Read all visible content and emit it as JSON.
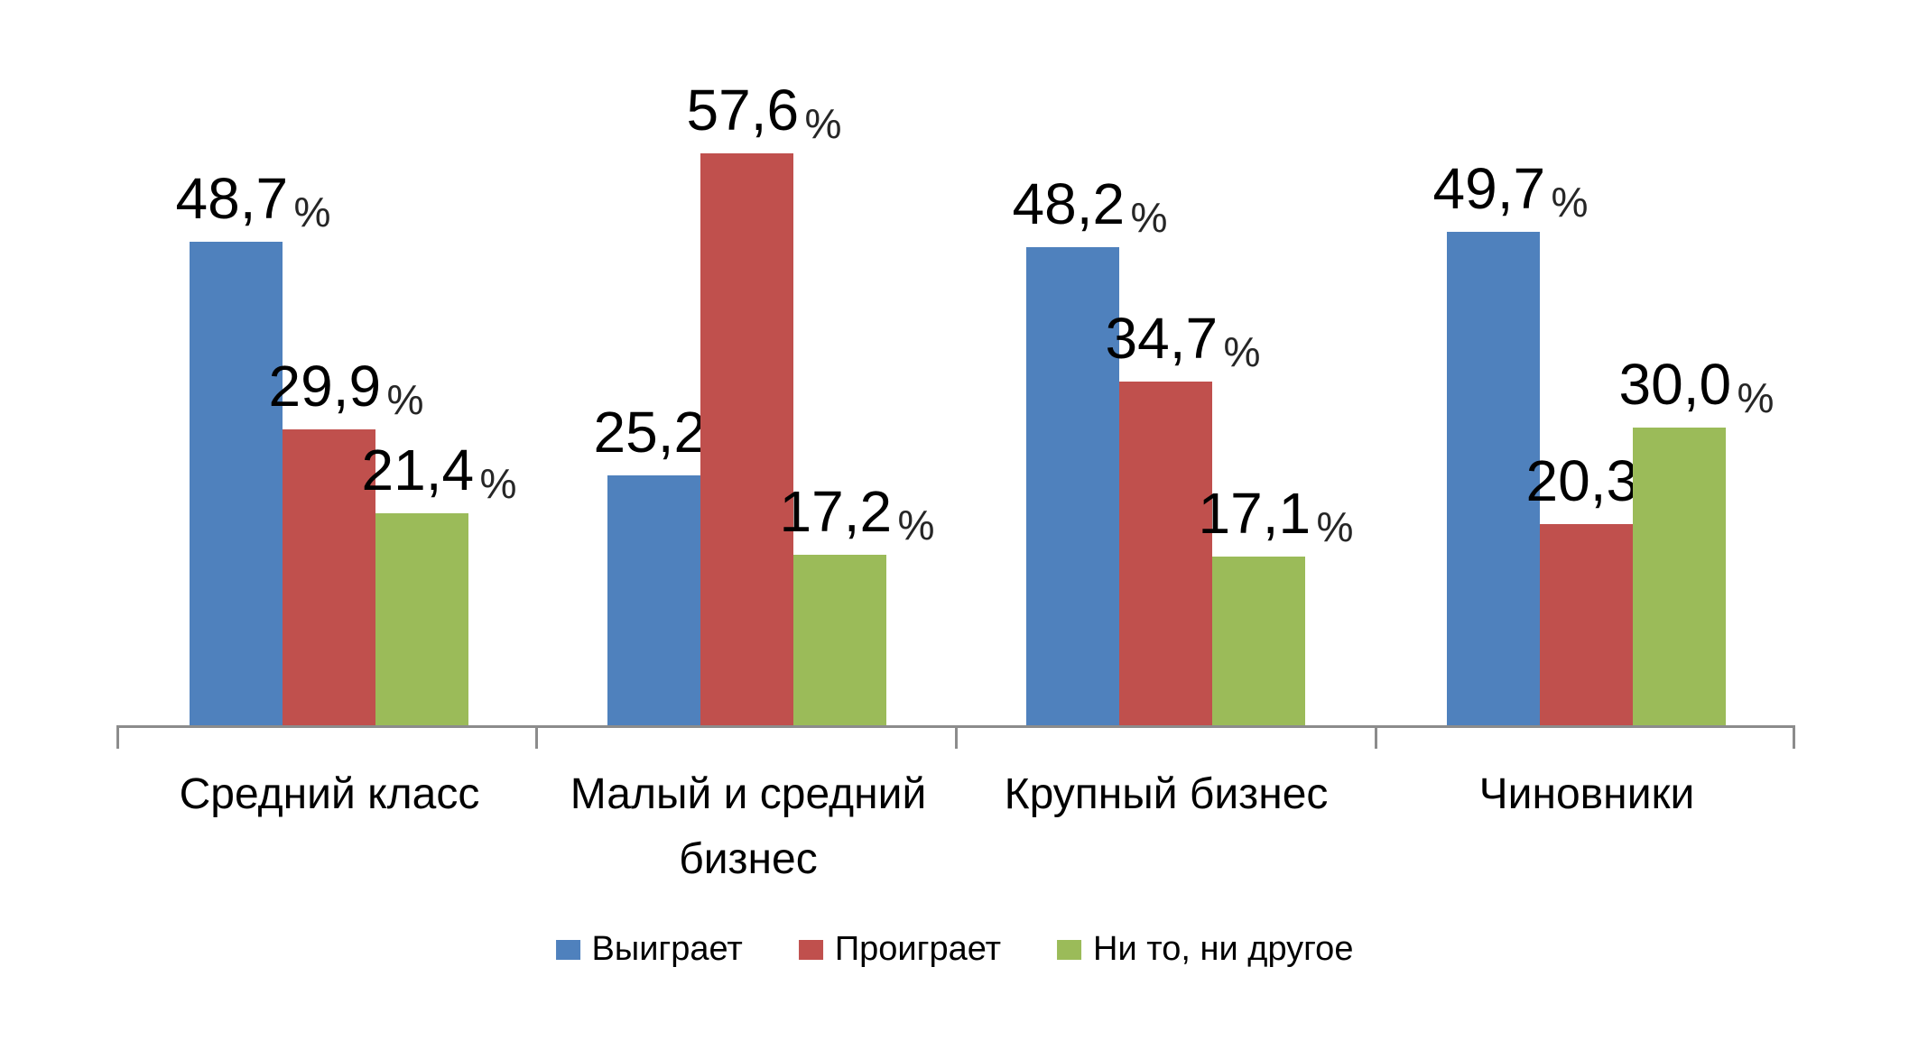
{
  "chart_data": {
    "type": "bar",
    "title": "",
    "categories": [
      "Средний класс",
      "Малый и средний бизнес",
      "Крупный бизнес",
      "Чиновники"
    ],
    "series": [
      {
        "name": "Выиграет",
        "color": "#4F81BD",
        "values": [
          48.7,
          25.2,
          48.2,
          49.7
        ]
      },
      {
        "name": "Проиграет",
        "color": "#C0504D",
        "values": [
          29.9,
          57.6,
          34.7,
          20.3
        ]
      },
      {
        "name": "Ни то, ни другое",
        "color": "#9BBB59",
        "values": [
          21.4,
          17.2,
          17.1,
          30.0
        ]
      }
    ],
    "value_suffix": "%",
    "decimal_separator": ",",
    "ylim": [
      0,
      62
    ],
    "grid": false,
    "y_axis_visible": false,
    "legend_position": "bottom",
    "axis_color": "#8C8C8C",
    "label_color": "#000000"
  }
}
